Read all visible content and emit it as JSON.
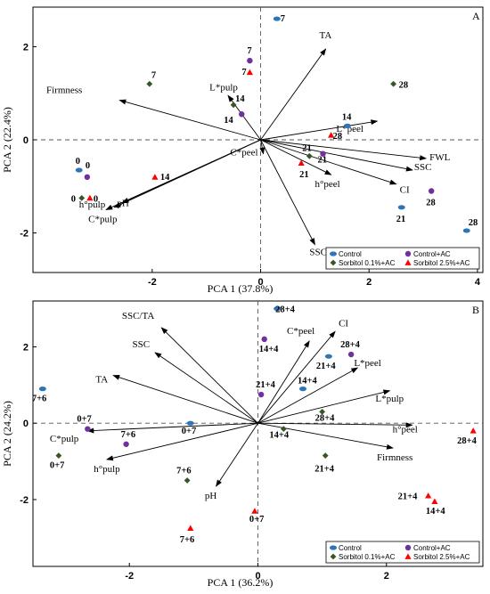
{
  "series_styles": [
    {
      "name": "Control",
      "marker": "ellipse",
      "color": "#2e75b6"
    },
    {
      "name": "Control+AC",
      "marker": "circle",
      "color": "#7030a0"
    },
    {
      "name": "Sorbitol 0.1%+AC",
      "marker": "diamond",
      "color": "#375623"
    },
    {
      "name": "Sorbitol 2.5%+AC",
      "marker": "triangle",
      "color": "#ff0000"
    }
  ],
  "chart_data": [
    {
      "type": "scatter",
      "panel_label": "A",
      "xlabel": "PCA 1 (37.8%)",
      "ylabel": "PCA 2 (22.4%)",
      "xlim": [
        -4.2,
        4.1
      ],
      "ylim": [
        -2.85,
        2.85
      ],
      "xticks": [
        -2,
        0,
        2,
        4
      ],
      "yticks": [
        -2,
        0,
        2
      ],
      "xtick_labels": [
        "-2",
        "0",
        "2",
        "4"
      ],
      "ytick_labels": [
        "-2",
        "0",
        "2"
      ],
      "legend": {
        "position": "bottom-right",
        "entries": [
          "Control",
          "Control+AC",
          "Sorbitol 0.1%+AC",
          "Sorbitol 2.5%+AC"
        ]
      },
      "series": [
        {
          "name": "Control",
          "points": [
            {
              "x": -3.35,
              "y": -0.65,
              "label": "0"
            },
            {
              "x": 0.3,
              "y": 2.6,
              "label": "7"
            },
            {
              "x": 1.6,
              "y": 0.3,
              "label": "14"
            },
            {
              "x": 2.6,
              "y": -1.45,
              "label": "21"
            },
            {
              "x": 3.8,
              "y": -1.95,
              "label": "28"
            }
          ]
        },
        {
          "name": "Control+AC",
          "points": [
            {
              "x": -3.2,
              "y": -0.8,
              "label": "0"
            },
            {
              "x": -0.2,
              "y": 1.7,
              "label": "7"
            },
            {
              "x": -0.35,
              "y": 0.55,
              "label": "14"
            },
            {
              "x": 1.15,
              "y": -0.3,
              "label": "21"
            },
            {
              "x": 3.15,
              "y": -1.1,
              "label": "28"
            }
          ]
        },
        {
          "name": "Sorbitol 0.1%+AC",
          "points": [
            {
              "x": -3.3,
              "y": -1.25,
              "label": "0"
            },
            {
              "x": -2.05,
              "y": 1.2,
              "label": "7"
            },
            {
              "x": -0.5,
              "y": 0.75,
              "label": "14"
            },
            {
              "x": 0.9,
              "y": -0.35,
              "label": "21"
            },
            {
              "x": 2.45,
              "y": 1.2,
              "label": "28"
            }
          ]
        },
        {
          "name": "Sorbitol 2.5%+AC",
          "points": [
            {
              "x": -3.15,
              "y": -1.25,
              "label": "0"
            },
            {
              "x": -1.95,
              "y": -0.8,
              "label": "14"
            },
            {
              "x": -0.2,
              "y": 1.45,
              "label": "7"
            },
            {
              "x": 0.75,
              "y": -0.5,
              "label": "21"
            },
            {
              "x": 1.3,
              "y": 0.1,
              "label": "28"
            }
          ]
        }
      ],
      "loadings": [
        {
          "name": "TA",
          "x": 1.2,
          "y": 1.95
        },
        {
          "name": "Firmness",
          "x": -2.6,
          "y": 0.85
        },
        {
          "name": "L*pulp",
          "x": -0.6,
          "y": 0.95
        },
        {
          "name": "L*peel",
          "x": 2.15,
          "y": 0.4
        },
        {
          "name": "FWL",
          "x": 3.05,
          "y": -0.4
        },
        {
          "name": "SSC",
          "x": 2.8,
          "y": -0.65
        },
        {
          "name": "CI",
          "x": 2.5,
          "y": -0.95
        },
        {
          "name": "h°peel",
          "x": 1.3,
          "y": -0.75
        },
        {
          "name": "C*peel",
          "x": 0.05,
          "y": -0.3
        },
        {
          "name": "SSC/TA",
          "x": 1.0,
          "y": -2.25
        },
        {
          "name": "pH",
          "x": -2.55,
          "y": -1.35
        },
        {
          "name": "h°pulp",
          "x": -2.7,
          "y": -1.45
        },
        {
          "name": "C*pulp",
          "x": -2.85,
          "y": -1.5
        }
      ]
    },
    {
      "type": "scatter",
      "panel_label": "B",
      "xlabel": "PCA 1 (36.2%)",
      "ylabel": "PCA 2 (24.2%)",
      "xlim": [
        -3.5,
        3.5
      ],
      "ylim": [
        -3.75,
        3.2
      ],
      "xticks": [
        -2,
        0,
        2
      ],
      "yticks": [
        -2,
        0,
        2
      ],
      "xtick_labels": [
        "-2",
        "0",
        "2"
      ],
      "ytick_labels": [
        "-2",
        "0",
        "2"
      ],
      "legend": {
        "position": "bottom-right",
        "entries": [
          "Control",
          "Control+AC",
          "Sorbitol 0.1%+AC",
          "Sorbitol 2.5%+AC"
        ]
      },
      "series": [
        {
          "name": "Control",
          "points": [
            {
              "x": -3.35,
              "y": 0.9,
              "label": "7+6"
            },
            {
              "x": -1.05,
              "y": 0.0,
              "label": "0+7"
            },
            {
              "x": 0.3,
              "y": 3.0,
              "label": "28+4"
            },
            {
              "x": 0.7,
              "y": 0.9,
              "label": "14+4"
            },
            {
              "x": 1.1,
              "y": 1.75,
              "label": "21+4"
            }
          ]
        },
        {
          "name": "Control+AC",
          "points": [
            {
              "x": -2.65,
              "y": -0.15,
              "label": "0+7"
            },
            {
              "x": -2.05,
              "y": -0.55,
              "label": "7+6"
            },
            {
              "x": 0.05,
              "y": 0.75,
              "label": "21+4"
            },
            {
              "x": 0.1,
              "y": 2.2,
              "label": "14+4"
            },
            {
              "x": 1.45,
              "y": 1.8,
              "label": "28+4"
            }
          ]
        },
        {
          "name": "Sorbitol 0.1%+AC",
          "points": [
            {
              "x": -3.1,
              "y": -0.85,
              "label": "0+7"
            },
            {
              "x": -1.1,
              "y": -1.5,
              "label": "7+6"
            },
            {
              "x": 0.4,
              "y": -0.15,
              "label": "14+4"
            },
            {
              "x": 1.0,
              "y": 0.3,
              "label": "28+4"
            },
            {
              "x": 1.05,
              "y": -0.85,
              "label": "21+4"
            }
          ]
        },
        {
          "name": "Sorbitol 2.5%+AC",
          "points": [
            {
              "x": -0.05,
              "y": -2.3,
              "label": "0+7"
            },
            {
              "x": -1.05,
              "y": -2.75,
              "label": "7+6"
            },
            {
              "x": 2.65,
              "y": -1.9,
              "label": "21+4"
            },
            {
              "x": 2.75,
              "y": -2.05,
              "label": "14+4"
            },
            {
              "x": 3.35,
              "y": -0.2,
              "label": "28+4"
            }
          ]
        }
      ],
      "loadings": [
        {
          "name": "SSC/TA",
          "x": -1.5,
          "y": 2.5
        },
        {
          "name": "SSC",
          "x": -1.6,
          "y": 1.85
        },
        {
          "name": "TA",
          "x": -2.25,
          "y": 1.25
        },
        {
          "name": "C*peel",
          "x": 0.8,
          "y": 2.15
        },
        {
          "name": "CI",
          "x": 1.2,
          "y": 2.4
        },
        {
          "name": "L*peel",
          "x": 1.55,
          "y": 1.45
        },
        {
          "name": "L*pulp",
          "x": 2.05,
          "y": 0.85
        },
        {
          "name": "h°peel",
          "x": 2.4,
          "y": -0.05
        },
        {
          "name": "Firmness",
          "x": 2.1,
          "y": -0.65
        },
        {
          "name": "C*pulp",
          "x": -2.65,
          "y": -0.2
        },
        {
          "name": "h°pulp",
          "x": -2.35,
          "y": -0.95
        },
        {
          "name": "pH",
          "x": -0.65,
          "y": -1.65
        }
      ]
    }
  ]
}
